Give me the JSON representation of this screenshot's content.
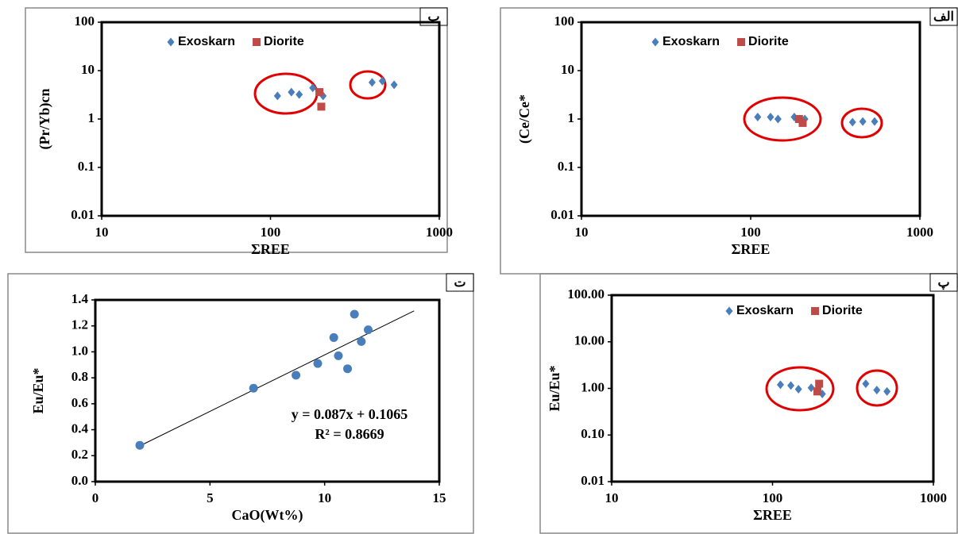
{
  "chart_data": [
    {
      "type": "scatter",
      "panel_label": "ب",
      "xlabel": "ΣREE",
      "ylabel": "(Pr/Yb)cn",
      "xlog": true,
      "ylog": true,
      "xlim": [
        10,
        1000
      ],
      "xticks": [
        10,
        100,
        1000
      ],
      "ylim": [
        0.01,
        100
      ],
      "yticks": [
        0.01,
        0.1,
        1,
        10,
        100
      ],
      "grid": false,
      "legend": "top",
      "series": [
        {
          "name": "Exoskarn",
          "color": "#4a7ebb",
          "marker": "diamond",
          "x": [
            110,
            133,
            148,
            178,
            205,
            400,
            460,
            540
          ],
          "values": [
            3.0,
            3.6,
            3.2,
            4.4,
            3.0,
            5.7,
            6.1,
            5.1
          ]
        },
        {
          "name": "Diorite",
          "color": "#be4b48",
          "marker": "square",
          "x": [
            195,
            200
          ],
          "values": [
            3.6,
            1.8
          ]
        }
      ]
    },
    {
      "type": "scatter",
      "panel_label": "الف",
      "xlabel": "ΣREE",
      "ylabel": "(Ce/Ce*",
      "xlog": true,
      "ylog": true,
      "xlim": [
        10,
        1000
      ],
      "xticks": [
        10,
        100,
        1000
      ],
      "ylim": [
        0.01,
        100
      ],
      "yticks": [
        0.01,
        0.1,
        1,
        10,
        100
      ],
      "grid": false,
      "legend": "top",
      "series": [
        {
          "name": "Exoskarn",
          "color": "#4a7ebb",
          "marker": "diamond",
          "x": [
            110,
            131,
            145,
            181,
            209,
            400,
            460,
            540
          ],
          "values": [
            1.1,
            1.1,
            1.0,
            1.1,
            1.0,
            0.86,
            0.89,
            0.89
          ]
        },
        {
          "name": "Diorite",
          "color": "#be4b48",
          "marker": "square",
          "x": [
            193,
            203
          ],
          "values": [
            1.0,
            0.83
          ]
        }
      ]
    },
    {
      "type": "scatter",
      "panel_label": "ت",
      "xlabel": "CaO(Wt%)",
      "ylabel": "Eu/Eu*",
      "xlog": false,
      "ylog": false,
      "xlim": [
        0,
        15
      ],
      "xticks": [
        0,
        5,
        10,
        15
      ],
      "ylim": [
        0,
        1.4
      ],
      "yticks": [
        {
          "value": 0,
          "label": "0.0"
        },
        0.2,
        0.4,
        0.6,
        0.8,
        {
          "value": 1,
          "label": "1.0"
        },
        1.2,
        1.4
      ],
      "grid": false,
      "color": "#4a7ebb",
      "marker": "circle",
      "x": [
        1.94,
        6.9,
        8.75,
        9.7,
        10.4,
        10.6,
        11.0,
        11.3,
        11.6,
        11.9
      ],
      "values": [
        0.28,
        0.72,
        0.82,
        0.91,
        1.11,
        0.97,
        0.87,
        1.29,
        1.08,
        1.17
      ],
      "trendline": {
        "slope": 0.087,
        "intercept": 0.1065,
        "x_range": [
          2,
          13.9
        ],
        "label": "y = 0.087x + 0.1065",
        "r2_label": "R² = 0.8669"
      }
    },
    {
      "type": "scatter",
      "panel_label": "پ",
      "xlabel": "ΣREE",
      "ylabel": "Eu/Eu*",
      "xlog": true,
      "ylog": true,
      "xlim": [
        10,
        1000
      ],
      "xticks": [
        10,
        100,
        1000
      ],
      "ylim": [
        0.01,
        100
      ],
      "yticks": [
        {
          "value": 0.01,
          "label": "0.01"
        },
        {
          "value": 0.1,
          "label": "0.10"
        },
        {
          "value": 1,
          "label": "1.00"
        },
        {
          "value": 10,
          "label": "10.00"
        },
        {
          "value": 100,
          "label": "100.00"
        }
      ],
      "grid": false,
      "legend": "top",
      "series": [
        {
          "name": "Exoskarn",
          "color": "#4a7ebb",
          "marker": "diamond",
          "x": [
            112,
            130,
            145,
            174,
            204,
            380,
            445,
            515
          ],
          "values": [
            1.2,
            1.15,
            0.96,
            1.03,
            0.76,
            1.26,
            0.92,
            0.86
          ]
        },
        {
          "name": "Diorite",
          "color": "#be4b48",
          "marker": "square",
          "x": [
            195,
            190
          ],
          "values": [
            1.26,
            0.86
          ]
        }
      ]
    }
  ]
}
